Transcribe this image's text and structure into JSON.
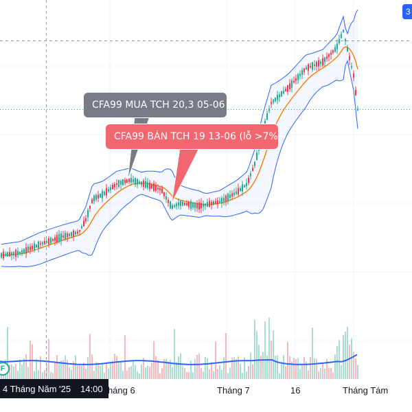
{
  "callouts": {
    "buy": {
      "text": "CFA99 MUA TCH 20,3 05-06",
      "color": "#787b86"
    },
    "sell": {
      "text": "CFA99 BÁN TCH 19 13-06 (lỗ >7%)",
      "color": "#f0676f"
    }
  },
  "time_axis": {
    "labels": [
      "Tháng 6",
      "Tháng 7",
      "16",
      "Tháng Tám"
    ],
    "crosshair_date": "4 Tháng Năm '25",
    "crosshair_time": "14:00"
  },
  "badge": {
    "letter": "F"
  },
  "corner_button": {
    "label": "3"
  },
  "colors": {
    "up": "#22ab94",
    "down": "#f23645",
    "bollinger": "#2962ff",
    "ma": "#f57c00",
    "volume_avg": "#2962ff"
  },
  "chart_data": {
    "type": "candlestick",
    "overlays": [
      "bollinger-bands",
      "moving-average",
      "volume",
      "volume-moving-average"
    ],
    "grid": true
  }
}
